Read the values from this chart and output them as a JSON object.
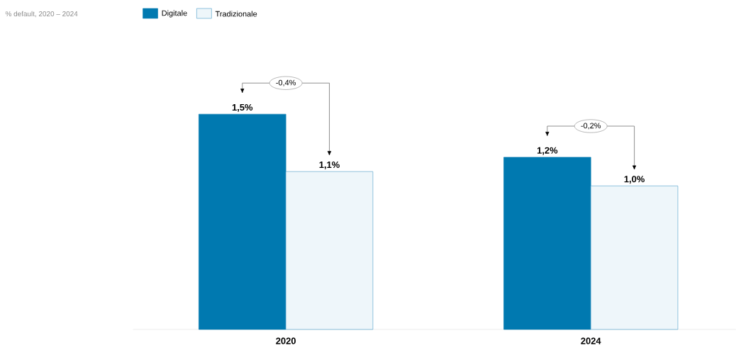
{
  "chart_data": {
    "type": "bar",
    "title": "% default, 2020 – 2024",
    "categories": [
      "2020",
      "2024"
    ],
    "legend": "top",
    "series": [
      {
        "name": "Digitale",
        "color": "#0079b0",
        "values": [
          1.5,
          1.2
        ],
        "value_labels": [
          "1,5%",
          "1,2%"
        ]
      },
      {
        "name": "Tradizionale",
        "color": "#eef6fa",
        "values": [
          1.1,
          1.0
        ],
        "value_labels": [
          "1,1%",
          "1,0%"
        ]
      }
    ],
    "annotations": [
      "-0,4%",
      "-0,2%"
    ]
  }
}
